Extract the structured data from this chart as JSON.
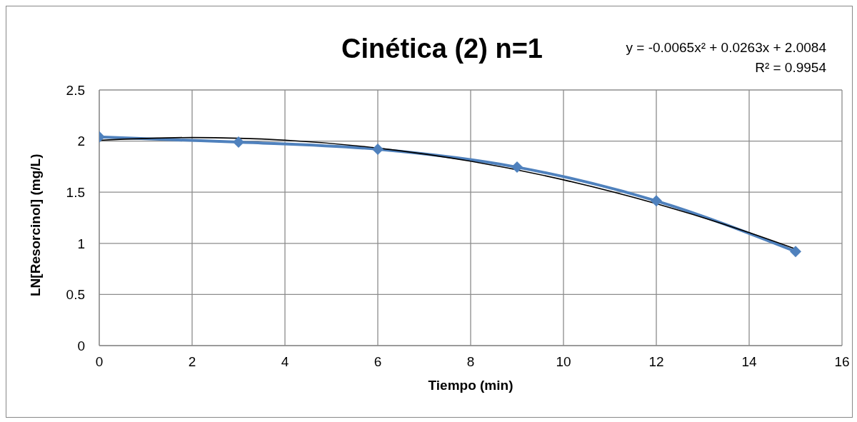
{
  "chart_data": {
    "type": "line",
    "title": "Cinética (2) n=1",
    "xlabel": "Tiempo (min)",
    "ylabel": "LN[Resorcinol] (mg/L)",
    "x": [
      0,
      3,
      6,
      9,
      12,
      15
    ],
    "series": [
      {
        "color": "#4f81bd",
        "values": [
          2.04,
          1.99,
          1.92,
          1.745,
          1.415,
          0.92
        ]
      },
      {
        "type": "line",
        "color": "#000000",
        "marker": "none",
        "x": [
          0,
          2,
          4,
          6,
          8,
          10,
          12,
          14,
          15
        ],
        "values": [
          2.008,
          2.035,
          2.009,
          1.932,
          1.803,
          1.621,
          1.388,
          1.105,
          0.945
        ]
      }
    ],
    "annotations": [
      "y = -0.0065x² + 0.0263x + 2.0084",
      "R² = 0.9954"
    ],
    "xlim": [
      0,
      16
    ],
    "xticks": [
      0,
      2,
      4,
      6,
      8,
      10,
      12,
      14,
      16
    ],
    "ylim": [
      0,
      2.5
    ],
    "yticks": [
      0,
      0.5,
      1,
      1.5,
      2,
      2.5
    ],
    "grid": true,
    "marker": "diamond",
    "line_style": "solid"
  }
}
